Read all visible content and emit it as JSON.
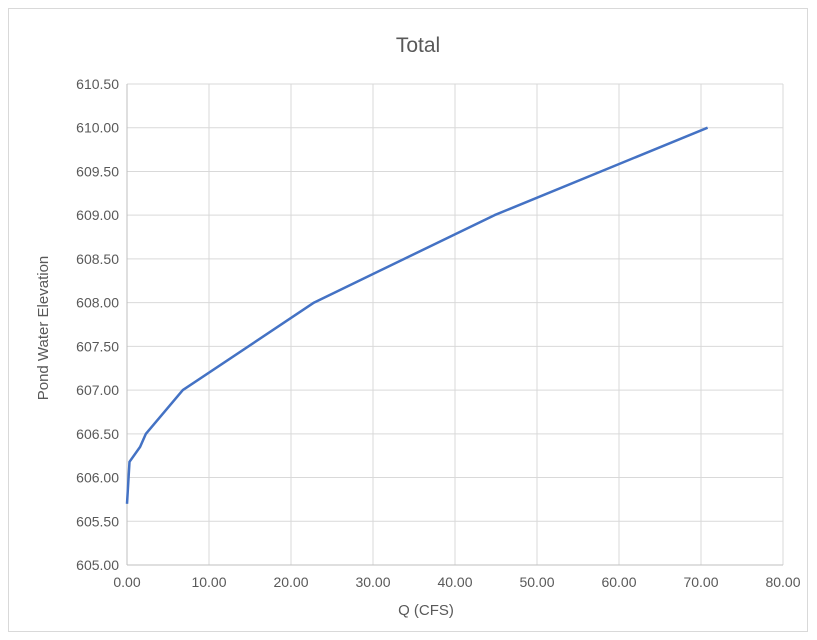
{
  "chart_data": {
    "type": "line",
    "title": "Total",
    "xlabel": "Q (CFS)",
    "ylabel": "Pond Water Elevation",
    "xlim": [
      0,
      80
    ],
    "ylim": [
      605,
      610.5
    ],
    "x_ticks": [
      "0.00",
      "10.00",
      "20.00",
      "30.00",
      "40.00",
      "50.00",
      "60.00",
      "70.00",
      "80.00"
    ],
    "y_ticks": [
      "605.00",
      "605.50",
      "606.00",
      "606.50",
      "607.00",
      "607.50",
      "608.00",
      "608.50",
      "609.00",
      "609.50",
      "610.00",
      "610.50"
    ],
    "grid": true,
    "legend": "none",
    "series": [
      {
        "color": "#4472c4",
        "x": [
          0.0,
          0.3,
          1.6,
          2.3,
          6.8,
          22.8,
          44.8,
          70.8
        ],
        "y": [
          605.7,
          606.18,
          606.35,
          606.5,
          607.0,
          608.0,
          609.0,
          610.0
        ]
      }
    ]
  }
}
